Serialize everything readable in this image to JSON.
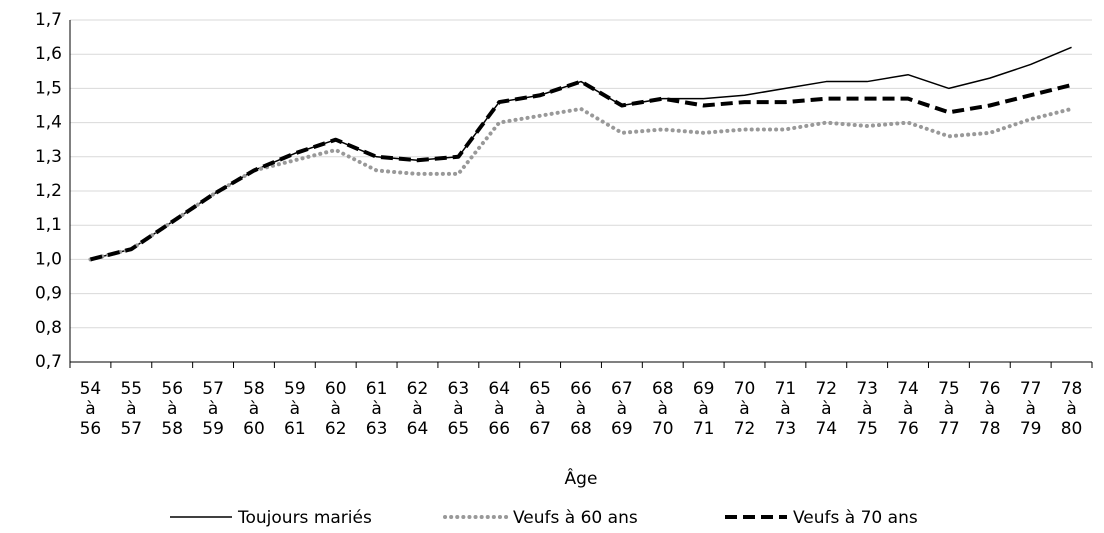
{
  "chart_data": {
    "type": "line",
    "x_label": "Âge",
    "categories": [
      "54 à 56",
      "55 à 57",
      "56 à 58",
      "57 à 59",
      "58 à 60",
      "59 à 61",
      "60 à 62",
      "61 à 63",
      "62 à 64",
      "63 à 65",
      "64 à 66",
      "65 à 67",
      "66 à 68",
      "67 à 69",
      "68 à 70",
      "69 à 71",
      "70 à 72",
      "71 à 73",
      "72 à 74",
      "73 à 75",
      "74 à 76",
      "75 à 77",
      "76 à 78",
      "77 à 79",
      "78 à 80"
    ],
    "series": [
      {
        "name": "Toujours mariés",
        "color": "#000000",
        "style": "solid",
        "values": [
          1.0,
          1.03,
          1.11,
          1.19,
          1.26,
          1.31,
          1.35,
          1.3,
          1.29,
          1.3,
          1.46,
          1.48,
          1.52,
          1.45,
          1.47,
          1.47,
          1.48,
          1.5,
          1.52,
          1.52,
          1.54,
          1.5,
          1.53,
          1.57,
          1.62
        ]
      },
      {
        "name": "Veufs à 60 ans",
        "color": "#999999",
        "style": "dotted",
        "values": [
          1.0,
          1.03,
          1.11,
          1.19,
          1.26,
          1.29,
          1.32,
          1.26,
          1.25,
          1.25,
          1.4,
          1.42,
          1.44,
          1.37,
          1.38,
          1.37,
          1.38,
          1.38,
          1.4,
          1.39,
          1.4,
          1.36,
          1.37,
          1.41,
          1.44
        ]
      },
      {
        "name": "Veufs à 70 ans",
        "color": "#000000",
        "style": "dashed",
        "values": [
          1.0,
          1.03,
          1.11,
          1.19,
          1.26,
          1.31,
          1.35,
          1.3,
          1.29,
          1.3,
          1.46,
          1.48,
          1.52,
          1.45,
          1.47,
          1.45,
          1.46,
          1.46,
          1.47,
          1.47,
          1.47,
          1.43,
          1.45,
          1.48,
          1.51
        ]
      }
    ],
    "ylim": [
      0.7,
      1.7
    ],
    "yticks": [
      {
        "value": 0.7,
        "label": "0,7"
      },
      {
        "value": 0.8,
        "label": "0,8"
      },
      {
        "value": 0.9,
        "label": "0,9"
      },
      {
        "value": 1.0,
        "label": "1,0"
      },
      {
        "value": 1.1,
        "label": "1,1"
      },
      {
        "value": 1.2,
        "label": "1,2"
      },
      {
        "value": 1.3,
        "label": "1,3"
      },
      {
        "value": 1.4,
        "label": "1,4"
      },
      {
        "value": 1.5,
        "label": "1,5"
      },
      {
        "value": 1.6,
        "label": "1,6"
      },
      {
        "value": 1.7,
        "label": "1,7"
      }
    ],
    "grid": true,
    "legend": "bottom"
  }
}
